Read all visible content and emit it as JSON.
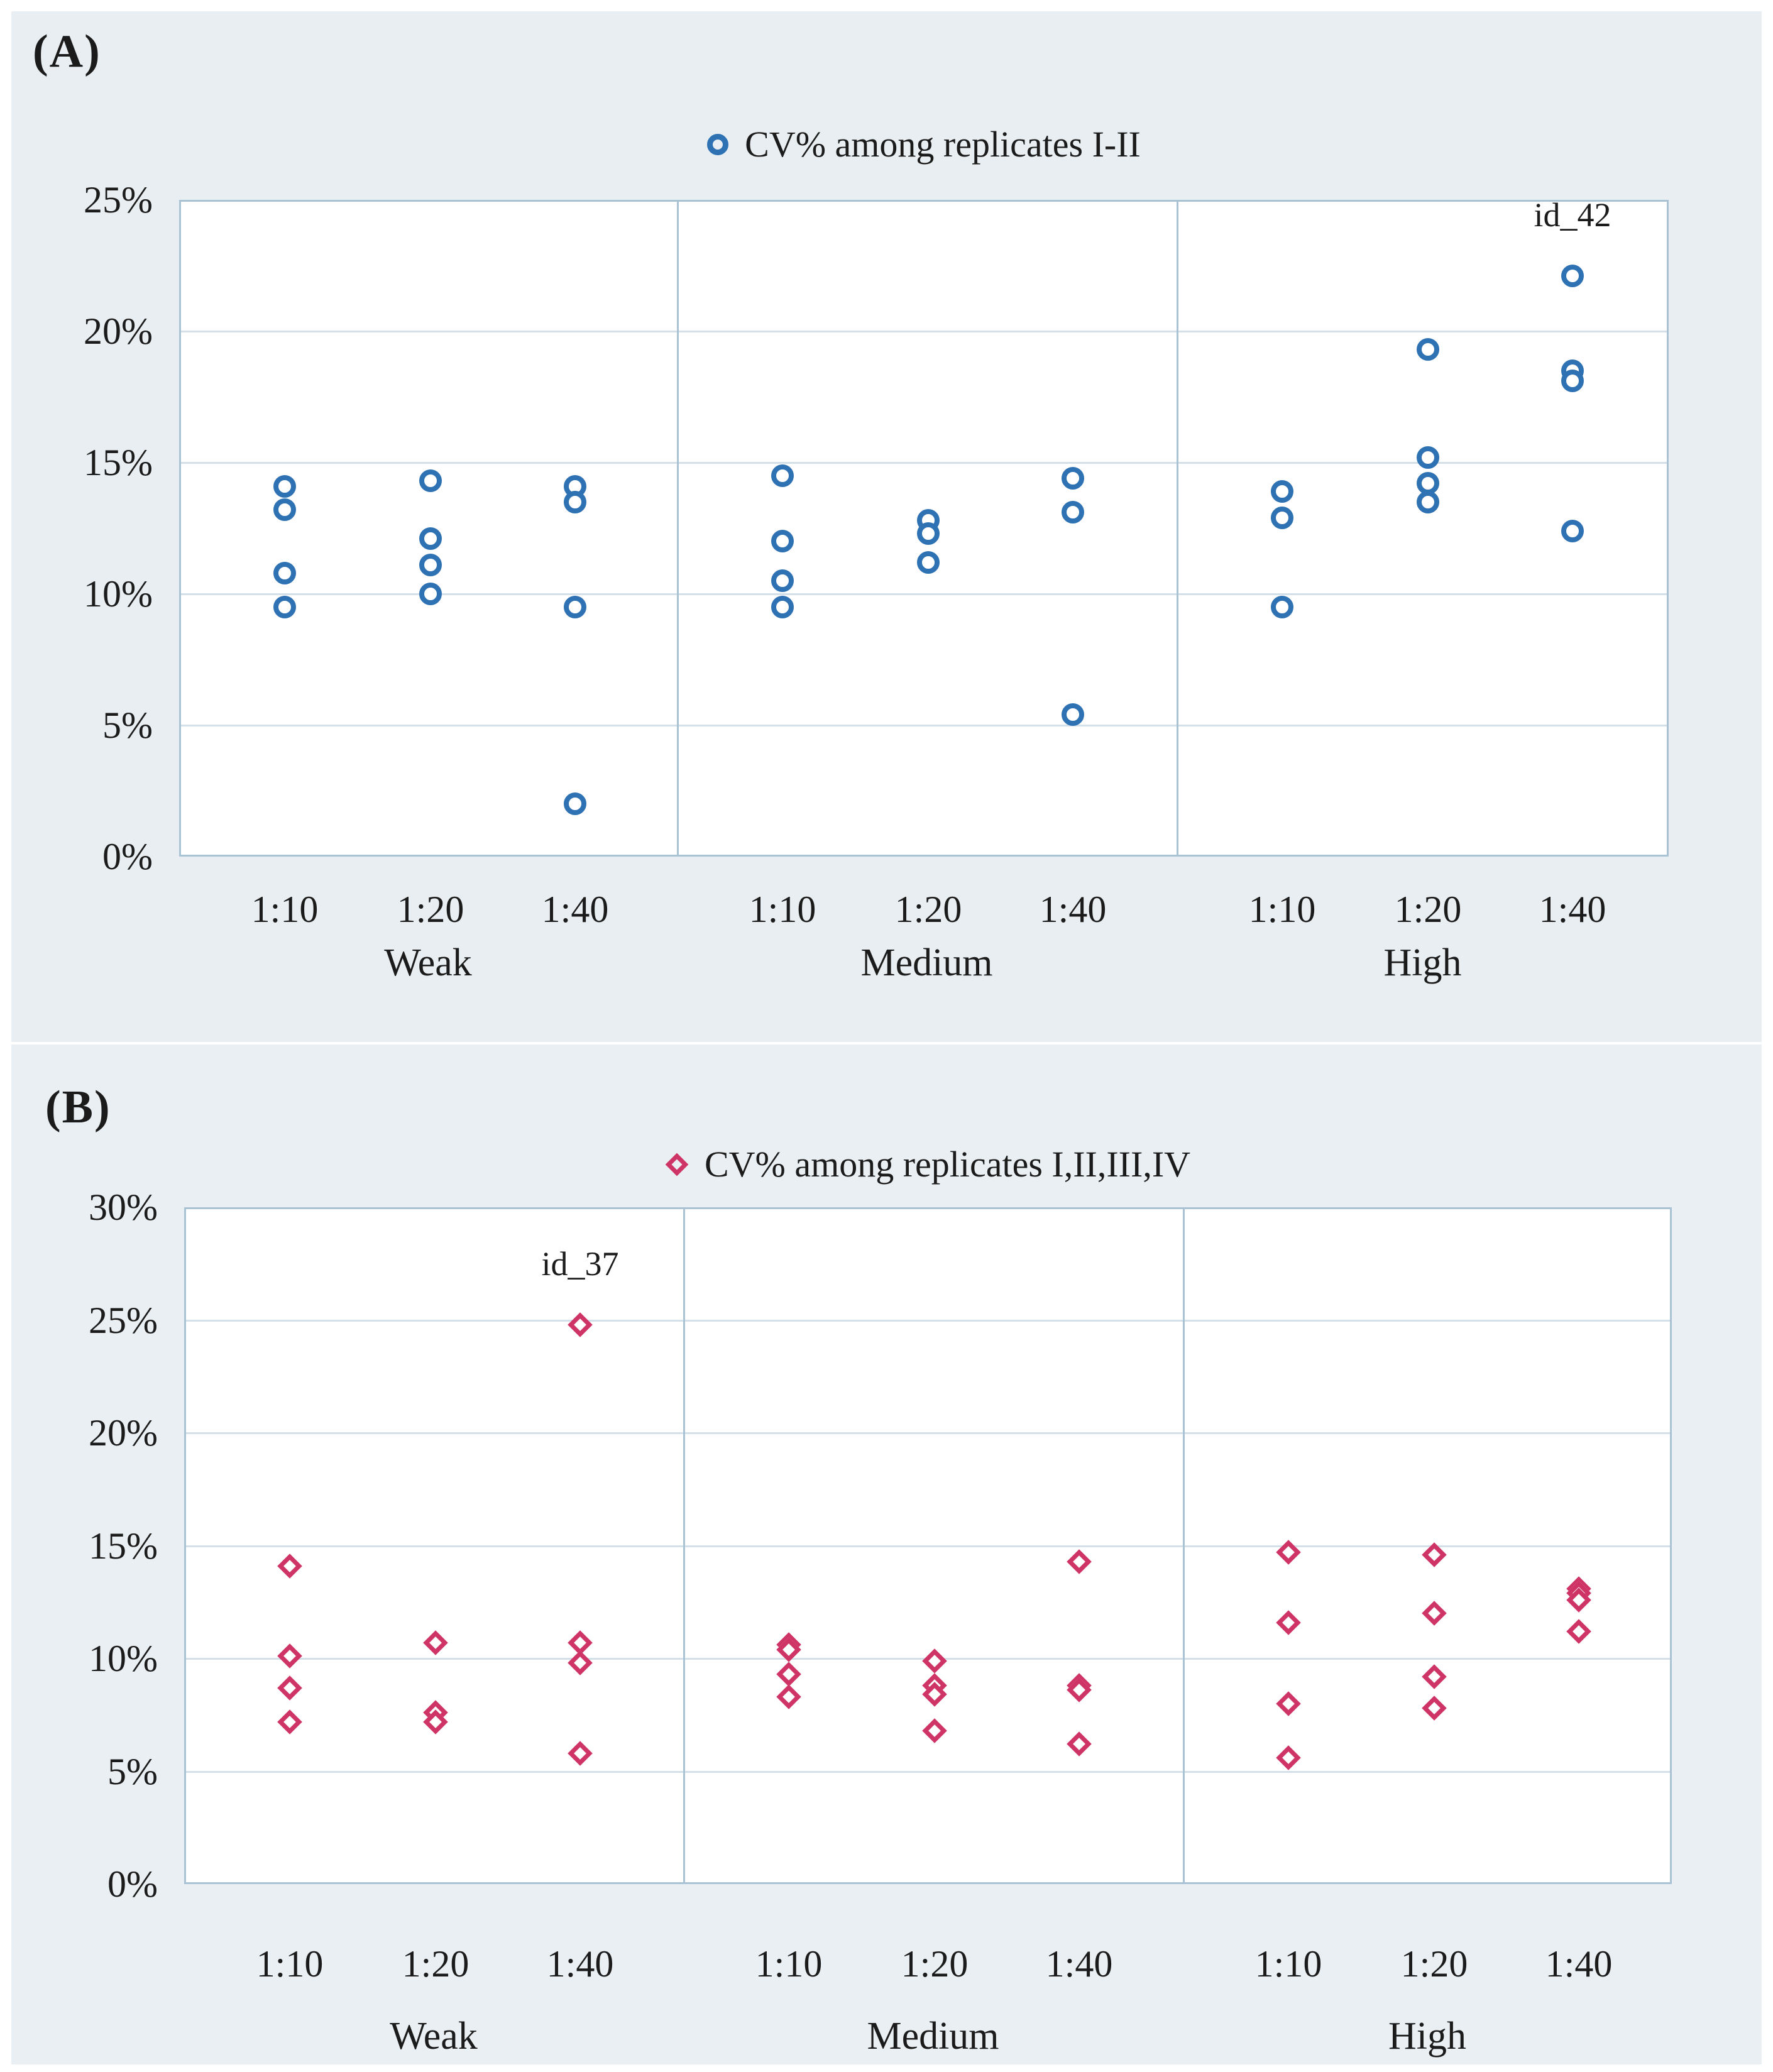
{
  "page": {
    "background": "#ffffff",
    "panel_background": "#e8eef1",
    "grid_color": "#d4e0e9",
    "frame_color": "#a9c2d4",
    "text_color": "#1b1b1b"
  },
  "panels": [
    {
      "label": "(A)",
      "legend": "CV% among replicates I-II",
      "marker": "open-circle",
      "marker_color": "#2f72b4",
      "annotation": "id_42"
    },
    {
      "label": "(B)",
      "legend": "CV% among replicates I,II,III,IV",
      "marker": "open-diamond",
      "marker_color": "#ce3465",
      "annotation": "id_37"
    }
  ],
  "chart_data": [
    {
      "type": "scatter",
      "panel": "A",
      "title": "CV% among replicates I-II",
      "marker": "open-circle",
      "marker_color": "#2f72b4",
      "grid": "horizontal",
      "legend_position": "top-center",
      "ylim": [
        0,
        25
      ],
      "y_ticks_pct": [
        0,
        5,
        10,
        15,
        20,
        25
      ],
      "y_tick_labels": [
        "0%",
        "5%",
        "10%",
        "15%",
        "20%",
        "25%"
      ],
      "groups": [
        "Weak",
        "Medium",
        "High"
      ],
      "dilutions": [
        "1:10",
        "1:20",
        "1:40"
      ],
      "points": [
        {
          "group": "Weak",
          "dilution": "1:10",
          "values_pct": [
            14.1,
            13.2,
            10.8,
            9.5
          ]
        },
        {
          "group": "Weak",
          "dilution": "1:20",
          "values_pct": [
            14.3,
            12.1,
            11.1,
            10.0
          ]
        },
        {
          "group": "Weak",
          "dilution": "1:40",
          "values_pct": [
            14.1,
            13.5,
            9.5,
            2.0
          ]
        },
        {
          "group": "Medium",
          "dilution": "1:10",
          "values_pct": [
            14.5,
            12.0,
            10.5,
            9.5
          ]
        },
        {
          "group": "Medium",
          "dilution": "1:20",
          "values_pct": [
            12.8,
            12.3,
            11.2
          ]
        },
        {
          "group": "Medium",
          "dilution": "1:40",
          "values_pct": [
            14.4,
            13.1,
            5.4
          ]
        },
        {
          "group": "High",
          "dilution": "1:10",
          "values_pct": [
            13.9,
            12.9,
            9.5
          ]
        },
        {
          "group": "High",
          "dilution": "1:20",
          "values_pct": [
            19.3,
            15.2,
            14.2,
            13.5
          ]
        },
        {
          "group": "High",
          "dilution": "1:40",
          "values_pct": [
            22.1,
            18.5,
            18.1,
            12.4
          ]
        }
      ],
      "annotations": [
        {
          "text": "id_42",
          "group": "High",
          "dilution": "1:40",
          "value_pct": 22.1
        }
      ]
    },
    {
      "type": "scatter",
      "panel": "B",
      "title": "CV% among replicates I,II,III,IV",
      "marker": "open-diamond",
      "marker_color": "#ce3465",
      "grid": "horizontal",
      "legend_position": "top-center",
      "ylim": [
        0,
        30
      ],
      "y_ticks_pct": [
        0,
        5,
        10,
        15,
        20,
        25,
        30
      ],
      "y_tick_labels": [
        "0%",
        "5%",
        "10%",
        "15%",
        "20%",
        "25%",
        "30%"
      ],
      "groups": [
        "Weak",
        "Medium",
        "High"
      ],
      "dilutions": [
        "1:10",
        "1:20",
        "1:40"
      ],
      "points": [
        {
          "group": "Weak",
          "dilution": "1:10",
          "values_pct": [
            14.1,
            10.1,
            8.7,
            7.2
          ]
        },
        {
          "group": "Weak",
          "dilution": "1:20",
          "values_pct": [
            10.7,
            7.6,
            7.2
          ]
        },
        {
          "group": "Weak",
          "dilution": "1:40",
          "values_pct": [
            24.8,
            10.7,
            9.8,
            5.8
          ]
        },
        {
          "group": "Medium",
          "dilution": "1:10",
          "values_pct": [
            10.6,
            10.4,
            9.3,
            8.3
          ]
        },
        {
          "group": "Medium",
          "dilution": "1:20",
          "values_pct": [
            9.9,
            8.8,
            8.4,
            6.8
          ]
        },
        {
          "group": "Medium",
          "dilution": "1:40",
          "values_pct": [
            14.3,
            8.8,
            8.6,
            6.2
          ]
        },
        {
          "group": "High",
          "dilution": "1:10",
          "values_pct": [
            14.7,
            11.6,
            8.0,
            5.6
          ]
        },
        {
          "group": "High",
          "dilution": "1:20",
          "values_pct": [
            14.6,
            12.0,
            9.2,
            7.8
          ]
        },
        {
          "group": "High",
          "dilution": "1:40",
          "values_pct": [
            13.1,
            12.9,
            12.6,
            11.2
          ]
        }
      ],
      "annotations": [
        {
          "text": "id_37",
          "group": "Weak",
          "dilution": "1:40",
          "value_pct": 24.8
        }
      ]
    }
  ]
}
